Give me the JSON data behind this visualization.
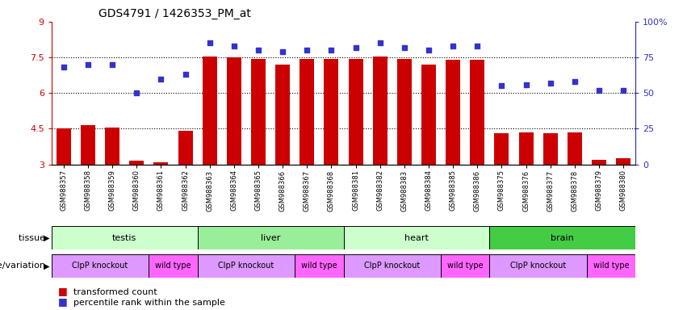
{
  "title": "GDS4791 / 1426353_PM_at",
  "samples": [
    "GSM988357",
    "GSM988358",
    "GSM988359",
    "GSM988360",
    "GSM988361",
    "GSM988362",
    "GSM988363",
    "GSM988364",
    "GSM988365",
    "GSM988366",
    "GSM988367",
    "GSM988368",
    "GSM988381",
    "GSM988382",
    "GSM988383",
    "GSM988384",
    "GSM988385",
    "GSM988386",
    "GSM988375",
    "GSM988376",
    "GSM988377",
    "GSM988378",
    "GSM988379",
    "GSM988380"
  ],
  "bar_values": [
    4.5,
    4.65,
    4.55,
    3.15,
    3.1,
    4.4,
    7.55,
    7.5,
    7.45,
    7.2,
    7.45,
    7.45,
    7.45,
    7.55,
    7.45,
    7.2,
    7.4,
    7.4,
    4.3,
    4.35,
    4.3,
    4.35,
    3.2,
    3.25
  ],
  "dot_values": [
    68,
    70,
    70,
    50,
    60,
    63,
    85,
    83,
    80,
    79,
    80,
    80,
    82,
    85,
    82,
    80,
    83,
    83,
    55,
    56,
    57,
    58,
    52,
    52
  ],
  "ylim": [
    3,
    9
  ],
  "y2lim": [
    0,
    100
  ],
  "yticks": [
    3,
    4.5,
    6,
    7.5,
    9
  ],
  "y2ticks": [
    0,
    25,
    50,
    75,
    100
  ],
  "y2ticklabels": [
    "0",
    "25",
    "50",
    "75",
    "100%"
  ],
  "bar_color": "#cc0000",
  "dot_color": "#3333cc",
  "hline_values": [
    4.5,
    6.0,
    7.5
  ],
  "tissue_groups": [
    {
      "label": "testis",
      "start": 0,
      "end": 5,
      "color": "#ccffcc"
    },
    {
      "label": "liver",
      "start": 6,
      "end": 11,
      "color": "#99ee99"
    },
    {
      "label": "heart",
      "start": 12,
      "end": 17,
      "color": "#ccffcc"
    },
    {
      "label": "brain",
      "start": 18,
      "end": 23,
      "color": "#44cc44"
    }
  ],
  "genotype_groups": [
    {
      "label": "ClpP knockout",
      "start": 0,
      "end": 3,
      "color": "#dd99ff"
    },
    {
      "label": "wild type",
      "start": 4,
      "end": 5,
      "color": "#ff66ff"
    },
    {
      "label": "ClpP knockout",
      "start": 6,
      "end": 9,
      "color": "#dd99ff"
    },
    {
      "label": "wild type",
      "start": 10,
      "end": 11,
      "color": "#ff66ff"
    },
    {
      "label": "ClpP knockout",
      "start": 12,
      "end": 15,
      "color": "#dd99ff"
    },
    {
      "label": "wild type",
      "start": 16,
      "end": 17,
      "color": "#ff66ff"
    },
    {
      "label": "ClpP knockout",
      "start": 18,
      "end": 21,
      "color": "#dd99ff"
    },
    {
      "label": "wild type",
      "start": 22,
      "end": 23,
      "color": "#ff66ff"
    }
  ],
  "tissue_label": "tissue",
  "genotype_label": "genotype/variation",
  "legend_bar": "transformed count",
  "legend_dot": "percentile rank within the sample"
}
